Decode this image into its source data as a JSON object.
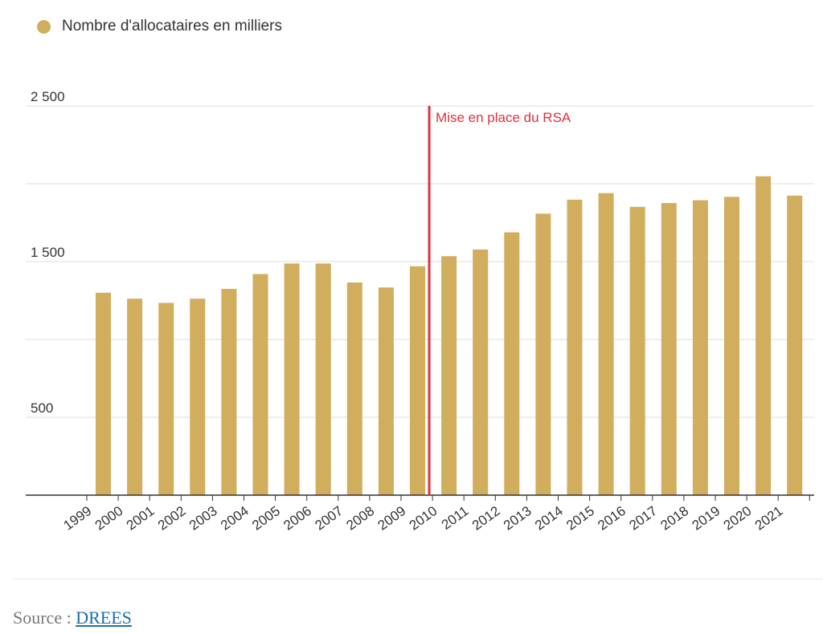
{
  "colors": {
    "bar": "#d1ad5e",
    "grid": "#dddddd",
    "axis": "#333333",
    "annotation": "#e0303a"
  },
  "legend": {
    "label": "Nombre d'allocataires en milliers"
  },
  "source": {
    "prefix": "Source :",
    "link_text": "DREES"
  },
  "chart_data": {
    "type": "bar",
    "title": "",
    "xlabel": "",
    "ylabel": "",
    "legend_entries": [
      "Nombre d'allocataires en milliers"
    ],
    "categories": [
      "1999",
      "2000",
      "2001",
      "2002",
      "2003",
      "2004",
      "2005",
      "2006",
      "2007",
      "2008",
      "2009",
      "2010",
      "2011",
      "2012",
      "2013",
      "2014",
      "2015",
      "2016",
      "2017",
      "2018",
      "2019",
      "2020",
      "2021"
    ],
    "values": [
      1300,
      1262,
      1235,
      1262,
      1325,
      1420,
      1488,
      1488,
      1366,
      1334,
      1470,
      1535,
      1578,
      1688,
      1808,
      1898,
      1940,
      1852,
      1876,
      1894,
      1916,
      2048,
      1924
    ],
    "ylim": [
      0,
      2500
    ],
    "gridlines": [
      0,
      500,
      1000,
      1500,
      2000,
      2500
    ],
    "y_tick_labels": [
      {
        "value": 500,
        "label": "500"
      },
      {
        "value": 1500,
        "label": "1 500"
      },
      {
        "value": 2500,
        "label": "2 500"
      }
    ],
    "annotation": {
      "label": "Mise en place du RSA",
      "position_between": [
        "2009",
        "2010"
      ]
    }
  }
}
